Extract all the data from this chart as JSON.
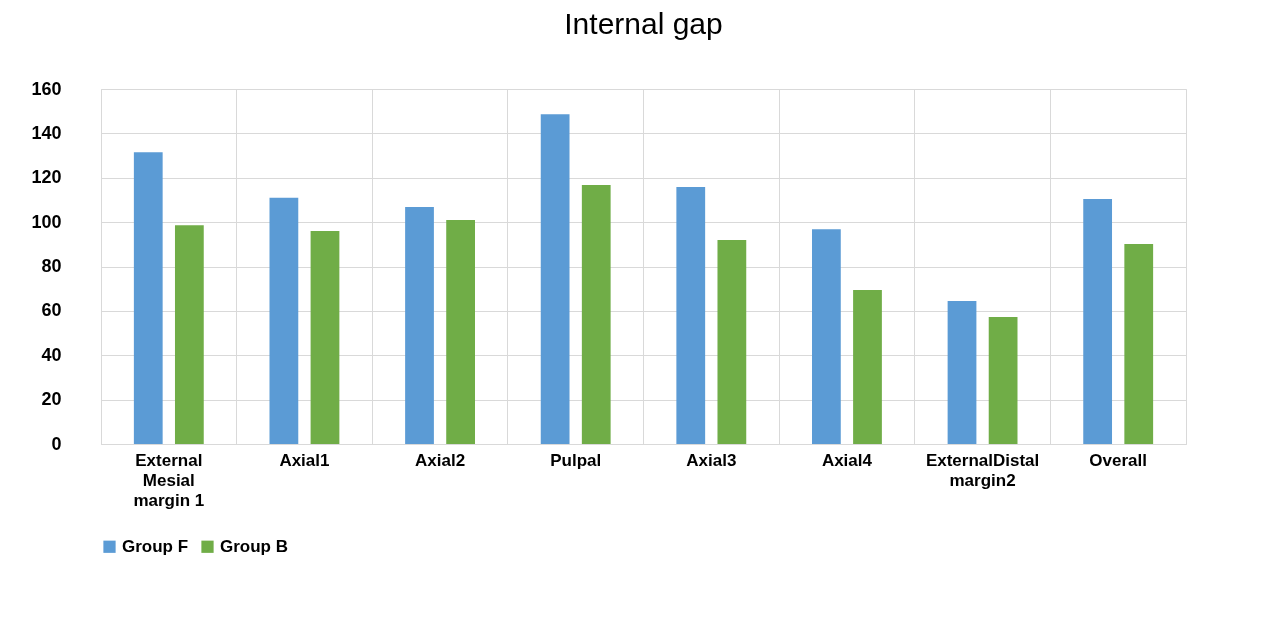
{
  "chart_data": {
    "type": "bar",
    "title": "Internal gap",
    "categories": [
      "External\nMesial\nmargin 1",
      "Axial1",
      "Axial2",
      "Pulpal",
      "Axial3",
      "Axial4",
      "ExternalDistal\nmargin2",
      "Overall"
    ],
    "series": [
      {
        "name": "Group F",
        "color": "#5b9bd5",
        "values": [
          131.5,
          111,
          106.8,
          148.6,
          115.8,
          96.8,
          64.4,
          110.4
        ]
      },
      {
        "name": "Group B",
        "color": "#70ad47",
        "values": [
          98.6,
          96,
          101,
          116.7,
          91.9,
          69.4,
          57.2,
          90.1
        ]
      }
    ],
    "ylim": [
      0,
      160
    ],
    "yticks": [
      0,
      20,
      40,
      60,
      80,
      100,
      120,
      140,
      160
    ],
    "grid": true,
    "legend": "bottom"
  }
}
